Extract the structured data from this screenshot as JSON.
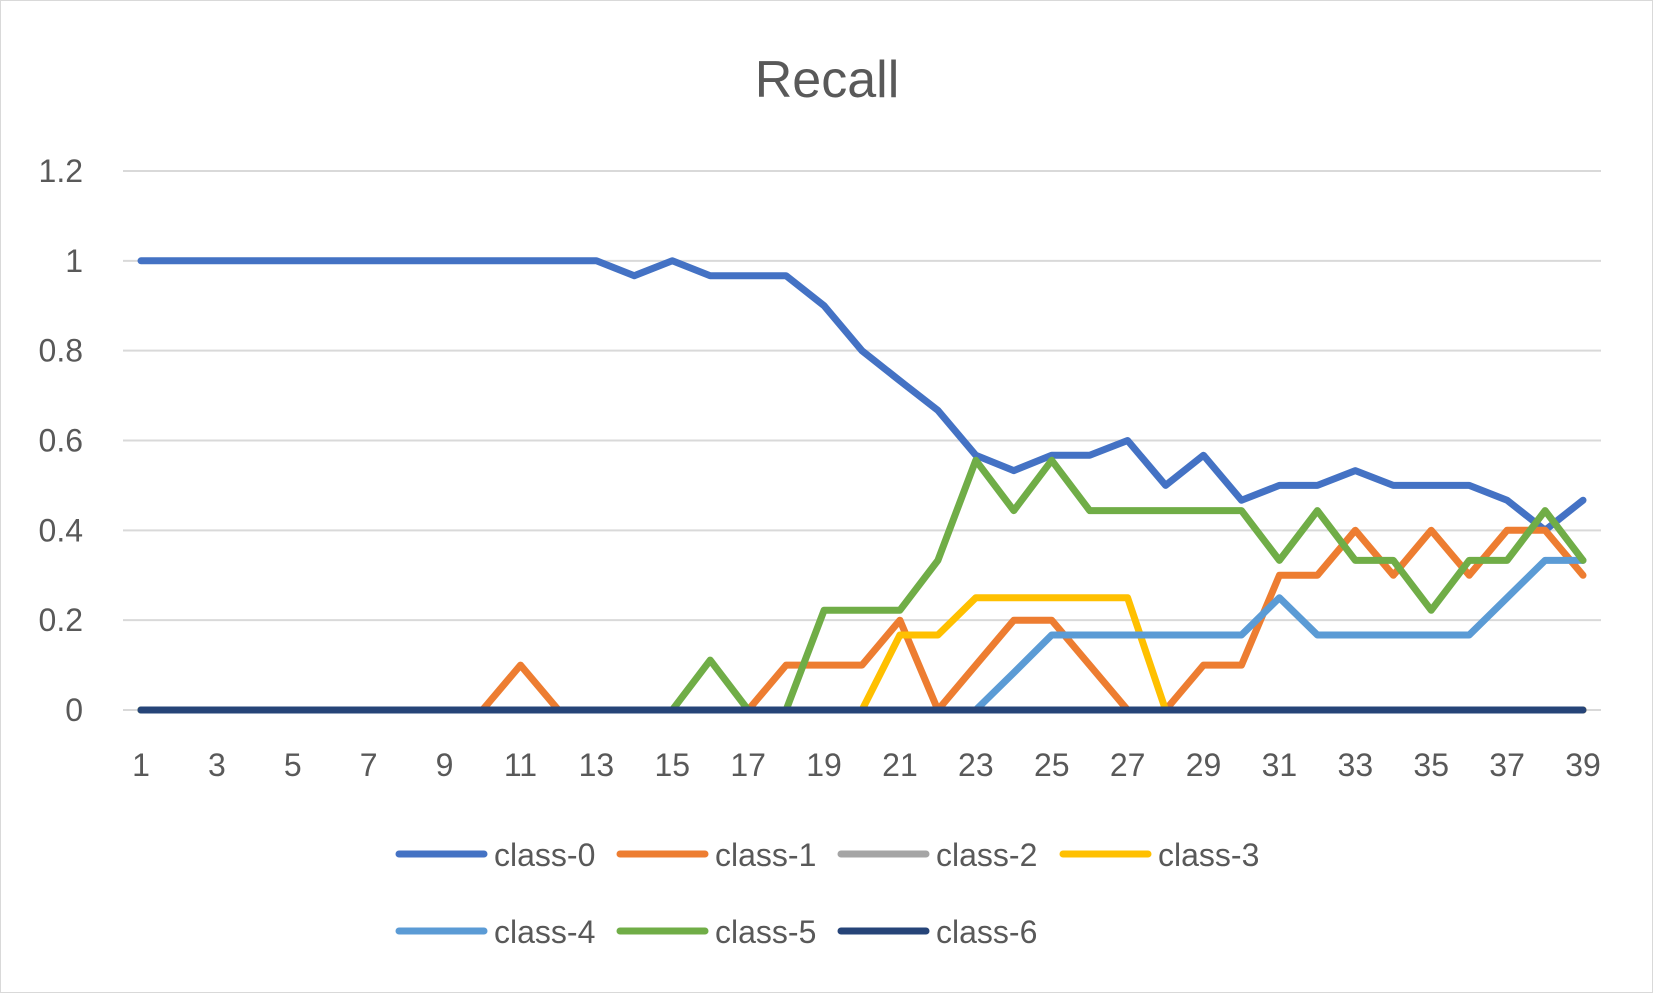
{
  "chart_data": {
    "type": "line",
    "title": "Recall",
    "xlabel": "",
    "ylabel": "",
    "x": [
      1,
      2,
      3,
      4,
      5,
      6,
      7,
      8,
      9,
      10,
      11,
      12,
      13,
      14,
      15,
      16,
      17,
      18,
      19,
      20,
      21,
      22,
      23,
      24,
      25,
      26,
      27,
      28,
      29,
      30,
      31,
      32,
      33,
      34,
      35,
      36,
      37,
      38,
      39
    ],
    "x_tick_labels": [
      "1",
      "3",
      "5",
      "7",
      "9",
      "11",
      "13",
      "15",
      "17",
      "19",
      "21",
      "23",
      "25",
      "27",
      "29",
      "31",
      "33",
      "35",
      "37",
      "39"
    ],
    "y_tick_labels": [
      "0",
      "0.2",
      "0.4",
      "0.6",
      "0.8",
      "1",
      "1.2"
    ],
    "ylim": [
      0,
      1.2
    ],
    "grid": true,
    "legend_position": "bottom",
    "series": [
      {
        "name": "class-0",
        "color": "#4472C4",
        "values": [
          1,
          1,
          1,
          1,
          1,
          1,
          1,
          1,
          1,
          1,
          1,
          1,
          1,
          0.967,
          1,
          0.967,
          0.967,
          0.967,
          0.9,
          0.8,
          0.733,
          0.667,
          0.567,
          0.533,
          0.567,
          0.567,
          0.6,
          0.5,
          0.567,
          0.467,
          0.5,
          0.5,
          0.533,
          0.5,
          0.5,
          0.5,
          0.467,
          0.4,
          0.467
        ]
      },
      {
        "name": "class-1",
        "color": "#ED7D31",
        "values": [
          0,
          0,
          0,
          0,
          0,
          0,
          0,
          0,
          0,
          0,
          0.1,
          0,
          0,
          0,
          0,
          0,
          0,
          0.1,
          0.1,
          0.1,
          0.2,
          0,
          0.1,
          0.2,
          0.2,
          0.1,
          0,
          0,
          0.1,
          0.1,
          0.3,
          0.3,
          0.4,
          0.3,
          0.4,
          0.3,
          0.4,
          0.4,
          0.3
        ]
      },
      {
        "name": "class-2",
        "color": "#A5A5A5",
        "values": [
          0,
          0,
          0,
          0,
          0,
          0,
          0,
          0,
          0,
          0,
          0,
          0,
          0,
          0,
          0,
          0,
          0,
          0,
          0,
          0,
          0,
          0,
          0,
          0,
          0,
          0,
          0,
          0,
          0,
          0,
          0,
          0,
          0,
          0,
          0,
          0,
          0,
          0,
          0
        ]
      },
      {
        "name": "class-3",
        "color": "#FFC000",
        "values": [
          0,
          0,
          0,
          0,
          0,
          0,
          0,
          0,
          0,
          0,
          0,
          0,
          0,
          0,
          0,
          0,
          0,
          0,
          0,
          0,
          0.167,
          0.167,
          0.25,
          0.25,
          0.25,
          0.25,
          0.25,
          0,
          0,
          0,
          0,
          0,
          0,
          0,
          0,
          0,
          0,
          0,
          0
        ]
      },
      {
        "name": "class-4",
        "color": "#5B9BD5",
        "values": [
          0,
          0,
          0,
          0,
          0,
          0,
          0,
          0,
          0,
          0,
          0,
          0,
          0,
          0,
          0,
          0,
          0,
          0,
          0,
          0,
          0,
          0,
          0,
          0.083,
          0.167,
          0.167,
          0.167,
          0.167,
          0.167,
          0.167,
          0.25,
          0.167,
          0.167,
          0.167,
          0.167,
          0.167,
          0.25,
          0.333,
          0.333
        ]
      },
      {
        "name": "class-5",
        "color": "#70AD47",
        "values": [
          0,
          0,
          0,
          0,
          0,
          0,
          0,
          0,
          0,
          0,
          0,
          0,
          0,
          0,
          0,
          0.111,
          0,
          0,
          0.222,
          0.222,
          0.222,
          0.333,
          0.556,
          0.444,
          0.556,
          0.444,
          0.444,
          0.444,
          0.444,
          0.444,
          0.333,
          0.444,
          0.333,
          0.333,
          0.222,
          0.333,
          0.333,
          0.444,
          0.333
        ]
      },
      {
        "name": "class-6",
        "color": "#264478",
        "values": [
          0,
          0,
          0,
          0,
          0,
          0,
          0,
          0,
          0,
          0,
          0,
          0,
          0,
          0,
          0,
          0,
          0,
          0,
          0,
          0,
          0,
          0,
          0,
          0,
          0,
          0,
          0,
          0,
          0,
          0,
          0,
          0,
          0,
          0,
          0,
          0,
          0,
          0,
          0
        ]
      }
    ]
  }
}
